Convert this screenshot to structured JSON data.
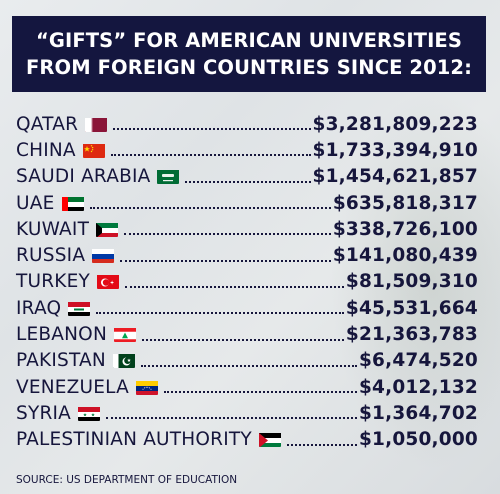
{
  "title": {
    "line1": "“GIFTS” FOR AMERICAN UNIVERSITIES",
    "line2": "FROM FOREIGN COUNTRIES SINCE 2012:"
  },
  "rows": [
    {
      "country": "QATAR",
      "amount": "$3,281,809,223",
      "flag_icon": "qatar-flag-icon"
    },
    {
      "country": "CHINA",
      "amount": "$1,733,394,910",
      "flag_icon": "china-flag-icon"
    },
    {
      "country": "SAUDI ARABIA",
      "amount": "$1,454,621,857",
      "flag_icon": "saudi-arabia-flag-icon"
    },
    {
      "country": "UAE",
      "amount": "$635,818,317",
      "flag_icon": "uae-flag-icon"
    },
    {
      "country": "KUWAIT",
      "amount": "$338,726,100",
      "flag_icon": "kuwait-flag-icon"
    },
    {
      "country": "RUSSIA",
      "amount": "$141,080,439",
      "flag_icon": "russia-flag-icon"
    },
    {
      "country": "TURKEY",
      "amount": "$81,509,310",
      "flag_icon": "turkey-flag-icon"
    },
    {
      "country": "IRAQ",
      "amount": "$45,531,664",
      "flag_icon": "iraq-flag-icon"
    },
    {
      "country": "LEBANON",
      "amount": "$21,363,783",
      "flag_icon": "lebanon-flag-icon"
    },
    {
      "country": "PAKISTAN",
      "amount": "$6,474,520",
      "flag_icon": "pakistan-flag-icon"
    },
    {
      "country": "VENEZUELA",
      "amount": "$4,012,132",
      "flag_icon": "venezuela-flag-icon"
    },
    {
      "country": "SYRIA",
      "amount": "$1,364,702",
      "flag_icon": "syria-flag-icon"
    },
    {
      "country": "PALESTINIAN AUTHORITY",
      "amount": "$1,050,000",
      "flag_icon": "palestine-flag-icon"
    }
  ],
  "source": "SOURCE: US DEPARTMENT OF EDUCATION",
  "colors": {
    "banner": "#14163f",
    "text": "#16163c",
    "background": "#e4e7e9"
  }
}
